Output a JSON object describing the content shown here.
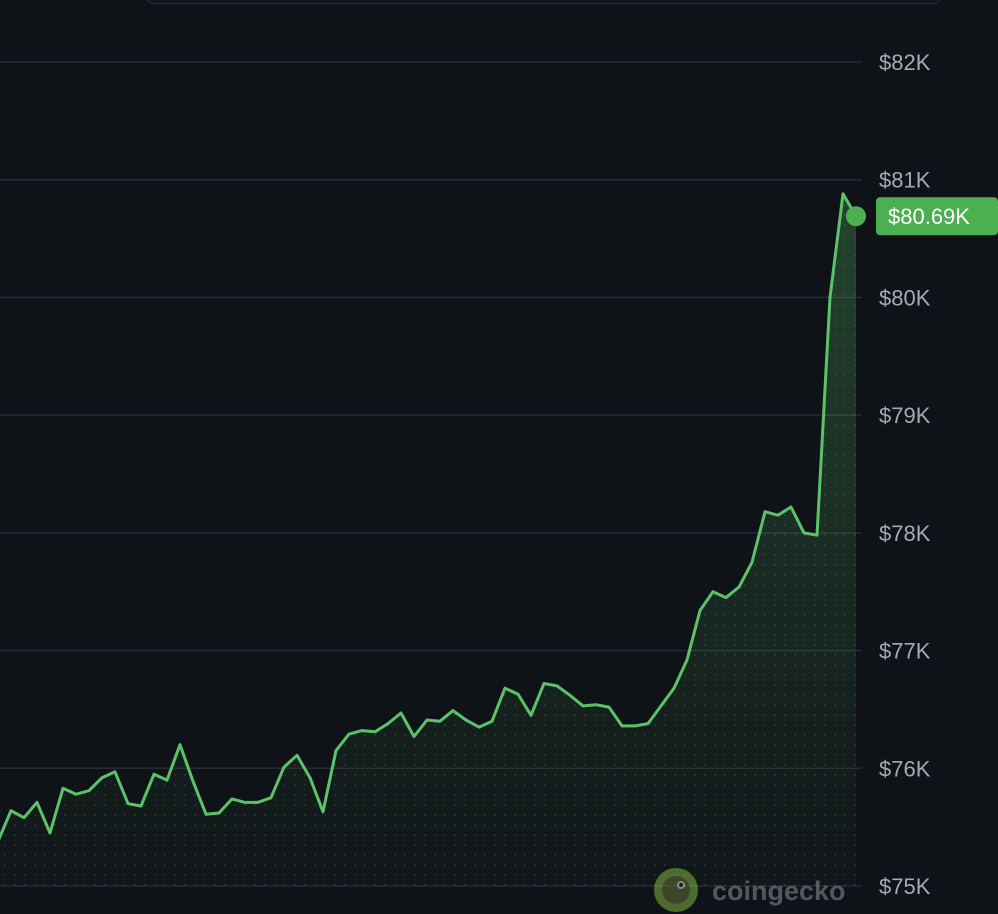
{
  "chart_data": {
    "type": "area",
    "currency": "$",
    "ylim": [
      75000,
      82200
    ],
    "y_ticks": [
      {
        "value": 82000,
        "label": "$82K"
      },
      {
        "value": 81000,
        "label": "$81K"
      },
      {
        "value": 80000,
        "label": "$80K"
      },
      {
        "value": 79000,
        "label": "$79K"
      },
      {
        "value": 78000,
        "label": "$78K"
      },
      {
        "value": 77000,
        "label": "$77K"
      },
      {
        "value": 76000,
        "label": "$76K"
      },
      {
        "value": 75000,
        "label": "$75K"
      }
    ],
    "grid": true,
    "current": {
      "value": 80690,
      "label": "$80.69K"
    },
    "series": [
      {
        "color": "#5cc26a",
        "values": [
          75380,
          75640,
          75580,
          75710,
          75450,
          75830,
          75780,
          75810,
          75920,
          75970,
          75700,
          75680,
          75950,
          75900,
          76200,
          75890,
          75610,
          75620,
          75740,
          75710,
          75710,
          75750,
          76010,
          76110,
          75920,
          75630,
          76150,
          76290,
          76320,
          76310,
          76380,
          76470,
          76270,
          76410,
          76400,
          76490,
          76410,
          76350,
          76400,
          76680,
          76630,
          76450,
          76720,
          76700,
          76620,
          76530,
          76540,
          76520,
          76360,
          76360,
          76380,
          76530,
          76680,
          76920,
          77340,
          77500,
          77450,
          77540,
          77750,
          78180,
          78150,
          78220,
          78000,
          77980,
          80000,
          80880,
          80690
        ]
      }
    ]
  },
  "watermark": {
    "text": "coingecko",
    "icon": "gecko-logo-icon"
  },
  "colors": {
    "background": "#0f1217",
    "grid": "#262b35",
    "line": "#5cc26a",
    "badge": "#4caf50",
    "axis_text": "#a3aab8"
  }
}
